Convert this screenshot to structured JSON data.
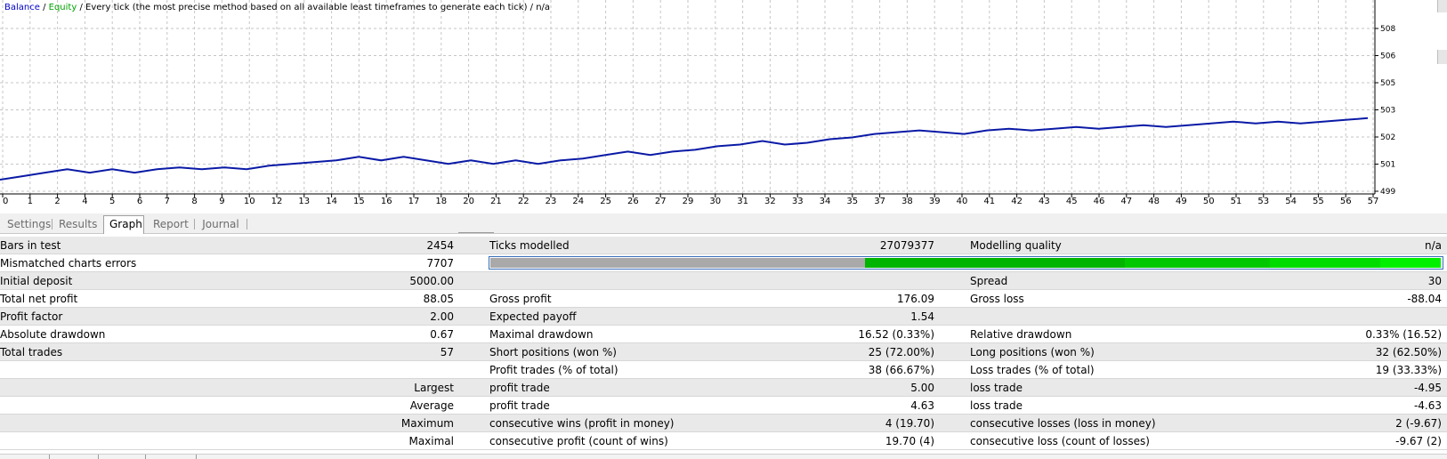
{
  "chart": {
    "legend": {
      "balance": "Balance",
      "equity": "Equity",
      "rest": " / Every tick (the most precise method based on all available least timeframes to generate each tick) / n/a"
    },
    "colors": {
      "balance_line": "#0a1aa6",
      "balance_text": "#0000c8",
      "equity_text": "#00a000",
      "grid": "#c6c6c6",
      "axis": "#000000"
    },
    "x_ticks": [
      "0",
      "1",
      "2",
      "4",
      "5",
      "6",
      "7",
      "8",
      "9",
      "10",
      "12",
      "13",
      "14",
      "15",
      "16",
      "17",
      "18",
      "20",
      "21",
      "22",
      "23",
      "24",
      "25",
      "26",
      "27",
      "29",
      "30",
      "31",
      "32",
      "33",
      "34",
      "35",
      "37",
      "38",
      "39",
      "40",
      "41",
      "42",
      "43",
      "45",
      "46",
      "47",
      "48",
      "49",
      "50",
      "51",
      "53",
      "54",
      "55",
      "56",
      "57"
    ],
    "y_ticks": [
      "508",
      "506",
      "505",
      "503",
      "502",
      "501",
      "499"
    ],
    "y_range": [
      4990,
      5085
    ],
    "balance_series": [
      4992,
      4994,
      4996,
      4998,
      4996,
      4998,
      4996,
      4998,
      4999,
      4998,
      4999,
      4998,
      5000,
      5001,
      5002,
      5003,
      5005,
      5003,
      5005,
      5003,
      5001,
      5003,
      5001,
      5003,
      5001,
      5003,
      5004,
      5006,
      5008,
      5006,
      5008,
      5009,
      5011,
      5012,
      5014,
      5012,
      5013,
      5015,
      5016,
      5018,
      5019,
      5020,
      5019,
      5018,
      5020,
      5021,
      5020,
      5021,
      5022,
      5021,
      5022,
      5023,
      5022,
      5023,
      5024,
      5025,
      5024,
      5025,
      5024,
      5025,
      5026,
      5027
    ]
  },
  "tabs": [
    "Settings",
    "Results",
    "Graph",
    "Report",
    "Journal"
  ],
  "report": {
    "r0": {
      "a_label": "Bars in test",
      "a_value": "2454",
      "b_label": "Ticks modelled",
      "b_value": "27079377",
      "c_label": "Modelling quality",
      "c_value": "n/a"
    },
    "r1": {
      "a_label": "Mismatched charts errors",
      "a_value": "7707"
    },
    "r2": {
      "a_label": "Initial deposit",
      "a_value": "5000.00",
      "c_label": "Spread",
      "c_value": "30"
    },
    "r3": {
      "a_label": "Total net profit",
      "a_value": "88.05",
      "b_label": "Gross profit",
      "b_value": "176.09",
      "c_label": "Gross loss",
      "c_value": "-88.04"
    },
    "r4": {
      "a_label": "Profit factor",
      "a_value": "2.00",
      "b_label": "Expected payoff",
      "b_value": "1.54"
    },
    "r5": {
      "a_label": "Absolute drawdown",
      "a_value": "0.67",
      "b_label": "Maximal drawdown",
      "b_value": "16.52 (0.33%)",
      "c_label": "Relative drawdown",
      "c_value": "0.33% (16.52)"
    },
    "r6": {
      "a_label": "Total trades",
      "a_value": "57",
      "b_label": "Short positions (won %)",
      "b_value": "25 (72.00%)",
      "c_label": "Long positions (won %)",
      "c_value": "32 (62.50%)"
    },
    "r7": {
      "b_label": "Profit trades (% of total)",
      "b_value": "38 (66.67%)",
      "c_label": "Loss trades (% of total)",
      "c_value": "19 (33.33%)"
    },
    "r8": {
      "a_value": "Largest",
      "b_label": "profit trade",
      "b_value": "5.00",
      "c_label": "loss trade",
      "c_value": "-4.95"
    },
    "r9": {
      "a_value": "Average",
      "b_label": "profit trade",
      "b_value": "4.63",
      "c_label": "loss trade",
      "c_value": "-4.63"
    },
    "r10": {
      "a_value": "Maximum",
      "b_label": "consecutive wins (profit in money)",
      "b_value": "4 (19.70)",
      "c_label": "consecutive losses (loss in money)",
      "c_value": "2 (-9.67)"
    },
    "r11": {
      "a_value": "Maximal",
      "b_label": "consecutive profit (count of wins)",
      "b_value": "19.70 (4)",
      "c_label": "consecutive loss (count of losses)",
      "c_value": "-9.67 (2)"
    }
  },
  "quality_bar": {
    "grey_fraction": 0.394,
    "colors": [
      "#a9a9a9",
      "#00b400",
      "#00c800",
      "#00dc00",
      "#00f000"
    ]
  }
}
